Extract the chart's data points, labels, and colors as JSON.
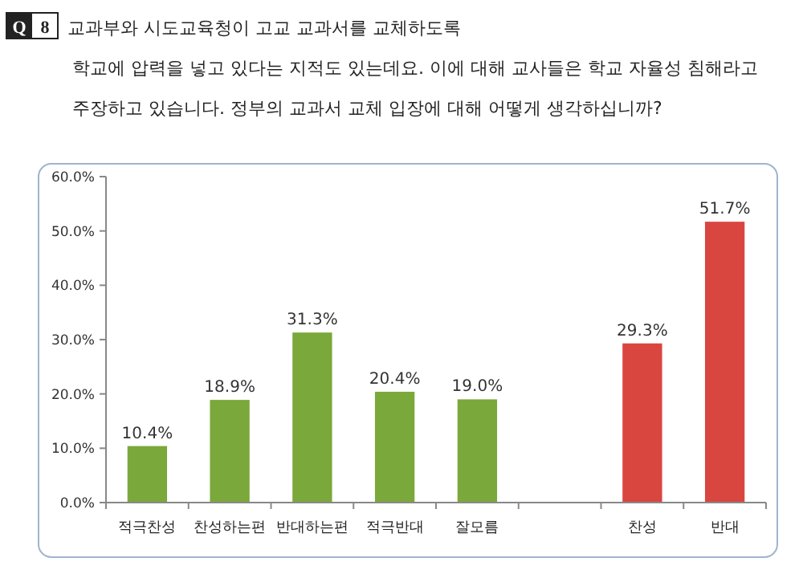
{
  "chart_data": {
    "type": "bar",
    "title": "교과부와 시도교육청이 고교 교과서를 교체하도록\n학교에 압력을 넣고 있다는 지적도 있는데요. 이에 대해 교사들은 학교 자율성 침해라고\n주장하고 있습니다. 정부의 교과서 교체 입장에 대해 어떻게 생각하십니까?",
    "annotations": [
      "Q 8"
    ],
    "categories": [
      "적극찬성",
      "찬성하는편",
      "반대하는편",
      "적극반대",
      "잘모름",
      null,
      "찬성",
      "반대"
    ],
    "values": [
      10.4,
      18.9,
      31.3,
      20.4,
      19.0,
      null,
      29.3,
      51.7
    ],
    "value_labels": [
      "10.4%",
      "18.9%",
      "31.3%",
      "20.4%",
      "19.0%",
      null,
      "29.3%",
      "51.7%"
    ],
    "colors": [
      "#7aa83a",
      "#7aa83a",
      "#7aa83a",
      "#7aa83a",
      "#7aa83a",
      null,
      "#d9463f",
      "#d9463f"
    ],
    "ylim": [
      0,
      60
    ],
    "yticks": [
      {
        "value": 0,
        "label": "0.0%"
      },
      {
        "value": 10,
        "label": "10.0%"
      },
      {
        "value": 20,
        "label": "20.0%"
      },
      {
        "value": 30,
        "label": "30.0%"
      },
      {
        "value": 40,
        "label": "40.0%"
      },
      {
        "value": 50,
        "label": "50.0%"
      },
      {
        "value": 60,
        "label": "60.0%"
      }
    ],
    "grid": false
  }
}
